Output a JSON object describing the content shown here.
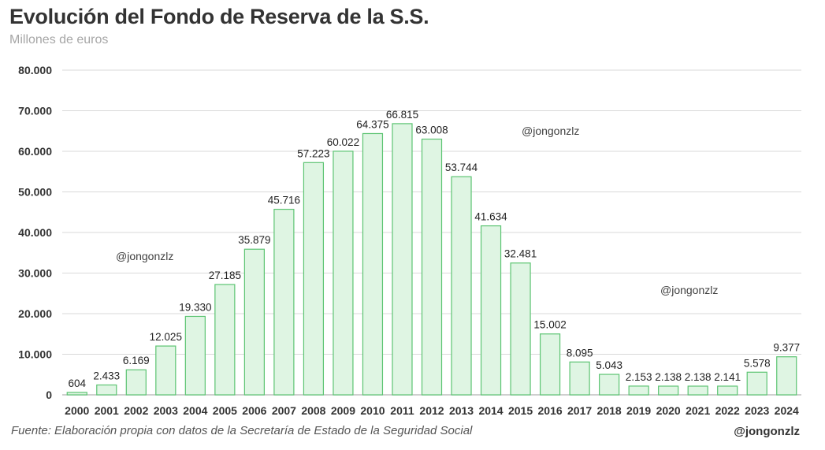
{
  "title": "Evolución del Fondo de Reserva de la S.S.",
  "subtitle": "Millones de euros",
  "footer": {
    "source": "Fuente: Elaboración propia con datos de la Secretaría de Estado de la Seguridad Social",
    "handle": "@jongonzlz"
  },
  "watermarks": [
    "@jongonzlz",
    "@jongonzlz",
    "@jongonzlz"
  ],
  "colors": {
    "bar_fill": "#dff5e3",
    "bar_stroke": "#5cc472",
    "grid": "#d9d9d9",
    "axis": "#bfbfbf"
  },
  "chart_data": {
    "type": "bar",
    "title": "Evolución del Fondo de Reserva de la S.S.",
    "ylabel": "Millones de euros",
    "xlabel": "",
    "ylim": [
      0,
      80000
    ],
    "yticks": [
      0,
      10000,
      20000,
      30000,
      40000,
      50000,
      60000,
      70000,
      80000
    ],
    "ytick_labels": [
      "0",
      "10.000",
      "20.000",
      "30.000",
      "40.000",
      "50.000",
      "60.000",
      "70.000",
      "80.000"
    ],
    "grid": true,
    "categories": [
      "2000",
      "2001",
      "2002",
      "2003",
      "2004",
      "2005",
      "2006",
      "2007",
      "2008",
      "2009",
      "2010",
      "2011",
      "2012",
      "2013",
      "2014",
      "2015",
      "2016",
      "2017",
      "2018",
      "2019",
      "2020",
      "2021",
      "2022",
      "2023",
      "2024"
    ],
    "values": [
      604,
      2433,
      6169,
      12025,
      19330,
      27185,
      35879,
      45716,
      57223,
      60022,
      64375,
      66815,
      63008,
      53744,
      41634,
      32481,
      15002,
      8095,
      5043,
      2153,
      2138,
      2138,
      2141,
      5578,
      9377
    ],
    "value_labels": [
      "604",
      "2.433",
      "6.169",
      "12.025",
      "19.330",
      "27.185",
      "35.879",
      "45.716",
      "57.223",
      "60.022",
      "64.375",
      "66.815",
      "63.008",
      "53.744",
      "41.634",
      "32.481",
      "15.002",
      "8.095",
      "5.043",
      "2.153",
      "2.138",
      "2.138",
      "2.141",
      "5.578",
      "9.377"
    ]
  }
}
